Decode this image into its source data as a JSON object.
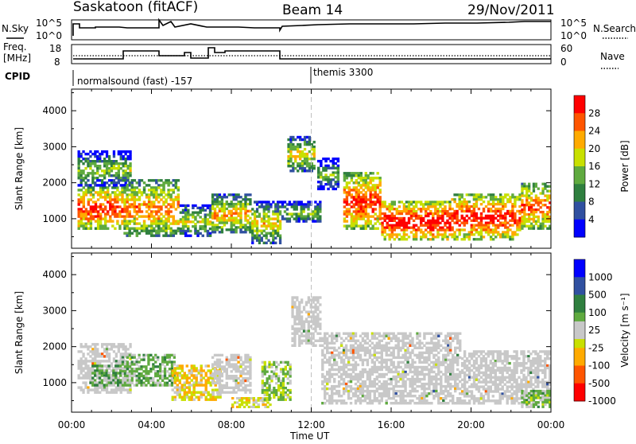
{
  "header": {
    "station": "Saskatoon (fitACF)",
    "beam": "Beam 14",
    "date": "29/Nov/2011"
  },
  "colors": {
    "scale": [
      "#0000ff",
      "#3050a0",
      "#2f7f3f",
      "#5faa3f",
      "#c8e000",
      "#ffaa00",
      "#ff5500",
      "#ff0000"
    ],
    "ground_scatter": "#c8c8c8",
    "dashed_marker": "#c0c0c0"
  },
  "panels": {
    "nsky": {
      "label": "N.Sky",
      "ticks": [
        "10^5",
        "10^0"
      ],
      "right_label": "N.Search",
      "right_ticks": [
        "10^5",
        "10^0"
      ]
    },
    "freq": {
      "label1": "Freq.",
      "label2": "[MHz]",
      "ticks": [
        "18",
        "8"
      ],
      "right_label": "Nave",
      "right_ticks": [
        "60",
        "0"
      ]
    },
    "cpid": {
      "label": "CPID",
      "program1": "normalsound (fast) -157",
      "program2": "themis 3300"
    }
  },
  "chart_data": [
    {
      "type": "heatmap",
      "title": "",
      "xlabel": "Time UT",
      "ylabel": "Slant Range [km]",
      "x_ticks": [
        "00:00",
        "04:00",
        "08:00",
        "12:00",
        "16:00",
        "20:00",
        "00:00"
      ],
      "xlim_hours": [
        0,
        24
      ],
      "ylim": [
        180,
        4600
      ],
      "y_ticks": [
        1000,
        2000,
        3000,
        4000
      ],
      "colorbar": {
        "label": "Power [dB]",
        "ticks": [
          "28",
          "24",
          "20",
          "16",
          "12",
          "8",
          "4"
        ],
        "range": [
          0,
          30
        ]
      },
      "dashed_marker_hour": 12.0,
      "regions": [
        {
          "t0": 0.3,
          "t1": 2.6,
          "r0": 700,
          "r1": 1900,
          "v": 22
        },
        {
          "t0": 0.3,
          "t1": 3.0,
          "r0": 1900,
          "r1": 2900,
          "v": 10
        },
        {
          "t0": 2.6,
          "t1": 5.4,
          "r0": 500,
          "r1": 2100,
          "v": 18
        },
        {
          "t0": 5.4,
          "t1": 7.0,
          "r0": 500,
          "r1": 1400,
          "v": 12
        },
        {
          "t0": 7.0,
          "t1": 9.0,
          "r0": 600,
          "r1": 1700,
          "v": 16
        },
        {
          "t0": 9.0,
          "t1": 10.5,
          "r0": 300,
          "r1": 1500,
          "v": 14
        },
        {
          "t0": 10.5,
          "t1": 12.5,
          "r0": 900,
          "r1": 1500,
          "v": 10
        },
        {
          "t0": 10.8,
          "t1": 12.2,
          "r0": 2300,
          "r1": 3300,
          "v": 14
        },
        {
          "t0": 12.3,
          "t1": 13.4,
          "r0": 1800,
          "r1": 2700,
          "v": 8
        },
        {
          "t0": 13.6,
          "t1": 15.5,
          "r0": 700,
          "r1": 2300,
          "v": 22
        },
        {
          "t0": 15.5,
          "t1": 19.0,
          "r0": 400,
          "r1": 1500,
          "v": 24
        },
        {
          "t0": 19.0,
          "t1": 22.5,
          "r0": 400,
          "r1": 1700,
          "v": 23
        },
        {
          "t0": 22.5,
          "t1": 24.0,
          "r0": 700,
          "r1": 2000,
          "v": 20
        }
      ]
    },
    {
      "type": "heatmap",
      "title": "",
      "xlabel": "Time UT",
      "ylabel": "Slant Range [km]",
      "x_ticks": [
        "00:00",
        "04:00",
        "08:00",
        "12:00",
        "16:00",
        "20:00",
        "00:00"
      ],
      "xlim_hours": [
        0,
        24
      ],
      "ylim": [
        180,
        4600
      ],
      "y_ticks": [
        1000,
        2000,
        3000,
        4000
      ],
      "colorbar": {
        "label": "Velocity [m s⁻¹]",
        "ticks": [
          "1000",
          "500",
          "100",
          "25",
          "-25",
          "-100",
          "-500",
          "-1000"
        ],
        "range": [
          -1200,
          1200
        ]
      },
      "dashed_marker_hour": 12.0,
      "regions": [
        {
          "t0": 0.3,
          "t1": 3.0,
          "r0": 700,
          "r1": 2100,
          "v": "g"
        },
        {
          "t0": 1.0,
          "t1": 2.5,
          "r0": 900,
          "r1": 1500,
          "v": 300
        },
        {
          "t0": 2.5,
          "t1": 5.2,
          "r0": 900,
          "r1": 1800,
          "v": 200
        },
        {
          "t0": 5.0,
          "t1": 7.5,
          "r0": 500,
          "r1": 1500,
          "v": -300
        },
        {
          "t0": 7.0,
          "t1": 9.0,
          "r0": 700,
          "r1": 1800,
          "v": "g"
        },
        {
          "t0": 8.0,
          "t1": 10.0,
          "r0": 300,
          "r1": 600,
          "v": -200
        },
        {
          "t0": 9.5,
          "t1": 11.0,
          "r0": 500,
          "r1": 1600,
          "v": 60
        },
        {
          "t0": 11.0,
          "t1": 12.5,
          "r0": 2000,
          "r1": 3400,
          "v": "g"
        },
        {
          "t0": 12.5,
          "t1": 19.5,
          "r0": 400,
          "r1": 2400,
          "v": "g"
        },
        {
          "t0": 19.5,
          "t1": 24.0,
          "r0": 400,
          "r1": 1900,
          "v": "g"
        },
        {
          "t0": 22.5,
          "t1": 24.0,
          "r0": 300,
          "r1": 800,
          "v": 150
        }
      ]
    }
  ]
}
